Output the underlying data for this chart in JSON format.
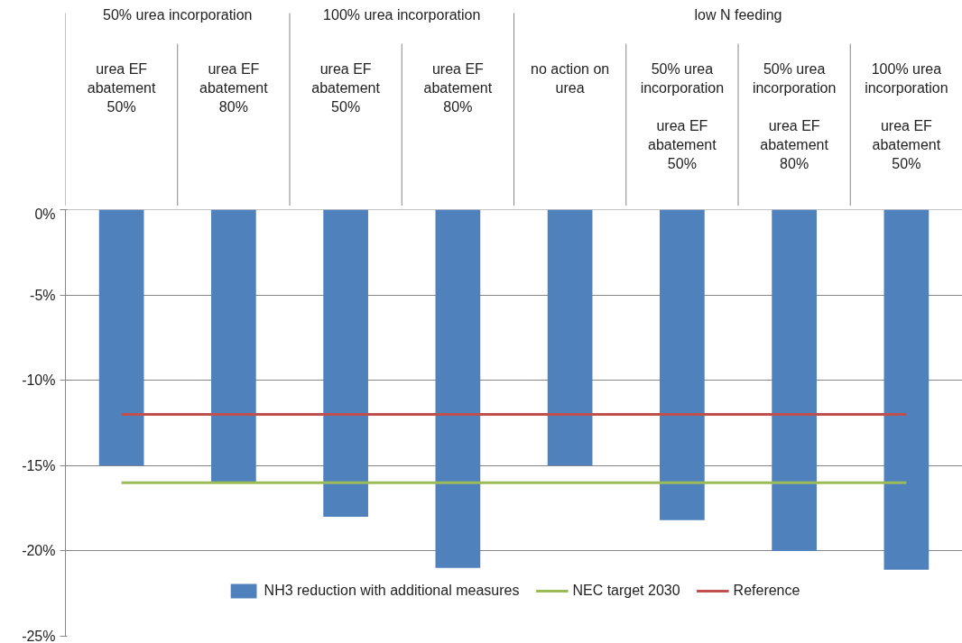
{
  "chart_data": {
    "type": "bar",
    "categories": [
      "urea EF\nabatement\n50%",
      "urea EF\nabatement\n80%",
      "urea EF\nabatement\n50%",
      "urea EF\nabatement\n80%",
      "no action on\nurea",
      "50% urea\nincorporation\n\nurea EF\nabatement\n50%",
      "50% urea\nincorporation\n\nurea EF\nabatement\n80%",
      "100% urea\nincorporation\n\nurea EF\nabatement\n50%"
    ],
    "series": [
      {
        "name": "NH3 reduction with additional measures",
        "color": "#4f81bd",
        "values": [
          -15,
          -16,
          -18,
          -21,
          -15,
          -18.2,
          -20,
          -21.1
        ]
      },
      {
        "name": "NEC target 2030",
        "type": "line",
        "color": "#9bbb59",
        "values": [
          -16,
          -16,
          -16,
          -16,
          -16,
          -16,
          -16,
          -16
        ]
      },
      {
        "name": "Reference",
        "type": "line",
        "color": "#c0504d",
        "values": [
          -12,
          -12,
          -12,
          -12,
          -12,
          -12,
          -12,
          -12
        ]
      }
    ],
    "annotations": [
      "50% urea incorporation",
      "100% urea incorporation",
      "low N feeding"
    ],
    "ylim": [
      -25,
      0
    ],
    "yticks": [
      {
        "value": 0,
        "label": "0%"
      },
      {
        "value": -5,
        "label": "-5%"
      },
      {
        "value": -10,
        "label": "-10%"
      },
      {
        "value": -15,
        "label": "-15%"
      },
      {
        "value": -20,
        "label": "-20%"
      },
      {
        "value": -25,
        "label": "-25%"
      }
    ],
    "grid": "y",
    "legend": "bottom",
    "marker": "none",
    "line_style": "solid"
  }
}
